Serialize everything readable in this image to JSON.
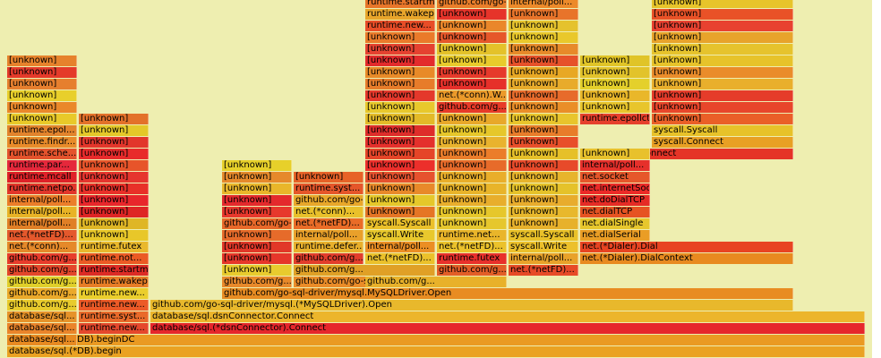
{
  "frames": [
    {
      "label": "database/sql.(*DB).begin",
      "color": "#eaa222"
    },
    {
      "label": "database/sql.(*DB).beginDC",
      "color": "#ea9a22"
    },
    {
      "label": "database/sql.(*dsnConnector).Connect",
      "color": "#e6262b"
    },
    {
      "label": "database/sql.dsnConnector.Connect",
      "color": "#ecb52b"
    },
    {
      "label": "github.com/go-sql-driver/mysql.(*MySQLDriver).Open",
      "color": "#e8b82c"
    },
    {
      "label": "github.com/go-sql-driver/mysql.MySQLDriver.Open",
      "color": "#e88c22"
    },
    {
      "label": "github.com/go-sql-driver/mysql.(*mysqlConn...",
      "color": "#ea8c28"
    },
    {
      "label": "github.com/go-sql-driver/mys...",
      "color": "#e96e22"
    },
    {
      "label": "net.(*Dialer).DialContext",
      "color": "#e88a20"
    },
    {
      "label": "net.(*Dialer).Dial",
      "color": "#e84422"
    },
    {
      "label": "net.dialSerial",
      "color": "#ea9d25"
    },
    {
      "label": "net.dialSingle",
      "color": "#e7c72d"
    },
    {
      "label": "net.dialTCP",
      "color": "#e65322"
    },
    {
      "label": "net.doDialTCP",
      "color": "#e52b25"
    },
    {
      "label": "net.internetSocket",
      "color": "#eb2a27"
    },
    {
      "label": "net.socket",
      "color": "#e6572a"
    },
    {
      "label": "net.(*netFD).dial",
      "color": "#eb7d2a"
    },
    {
      "label": "net.(*netFD).connect",
      "color": "#e53427"
    },
    {
      "label": "syscall.Connect",
      "color": "#e8a024"
    },
    {
      "label": "syscall.Syscall",
      "color": "#e7c229"
    },
    {
      "label": "runtime.epollctl",
      "color": "#e6402c"
    },
    {
      "label": "[unknown]",
      "color": "#ea5f27"
    },
    {
      "label": "database/sql...",
      "color": "#e88a21"
    },
    {
      "label": "database/sql...",
      "color": "#ea842a"
    },
    {
      "label": "database/sql...",
      "color": "#e6932a"
    },
    {
      "label": "github.com/g...",
      "color": "#e8cb2d"
    },
    {
      "label": "github.com/g...",
      "color": "#eba92a"
    },
    {
      "label": "github.com/g...",
      "color": "#e0cf2a"
    },
    {
      "label": "github.com/g...",
      "color": "#e3462a"
    },
    {
      "label": "github.com/g...",
      "color": "#e73c2b"
    },
    {
      "label": "net.(*conn)...",
      "color": "#e5892a"
    },
    {
      "label": "net.(*netFD)...",
      "color": "#e4582c"
    },
    {
      "label": "internal/poll...",
      "color": "#e07f26"
    },
    {
      "label": "internal/poll...",
      "color": "#e8b326"
    },
    {
      "label": "internal/poll...",
      "color": "#eb7d29"
    },
    {
      "label": "runtime.netpo...",
      "color": "#e1362a"
    },
    {
      "label": "runtime.mcall",
      "color": "#df2228"
    },
    {
      "label": "runtime.par...",
      "color": "#e5283b"
    },
    {
      "label": "runtime.sche...",
      "color": "#e4532c"
    },
    {
      "label": "runtime.findr...",
      "color": "#e88b2a"
    },
    {
      "label": "runtime.epol...",
      "color": "#e2832c"
    },
    {
      "label": "[unknown]",
      "color": "#e8c929"
    },
    {
      "label": "[unknown]",
      "color": "#ea882a"
    },
    {
      "label": "[unknown]",
      "color": "#e8cf2b"
    },
    {
      "label": "[unknown]",
      "color": "#e67f2e"
    },
    {
      "label": "[unknown]",
      "color": "#e43a2a"
    },
    {
      "label": "[unknown]",
      "color": "#e6822c"
    },
    {
      "label": "runtime.new...",
      "color": "#e5482c"
    },
    {
      "label": "runtime.syst...",
      "color": "#e96a2a"
    },
    {
      "label": "runtime.new...",
      "color": "#ec5a27"
    },
    {
      "label": "runtime.new...",
      "color": "#ebce2c"
    },
    {
      "label": "runtime.wakep",
      "color": "#e77d26"
    },
    {
      "label": "runtime.startm",
      "color": "#dd2b25"
    },
    {
      "label": "runtime.not...",
      "color": "#eb5a24"
    },
    {
      "label": "runtime.futex",
      "color": "#e9b82c"
    },
    {
      "label": "[unknown]",
      "color": "#e8c729"
    },
    {
      "label": "[unknown]",
      "color": "#dfb625"
    },
    {
      "label": "[unknown]",
      "color": "#de2525"
    },
    {
      "label": "[unknown]",
      "color": "#e8262b"
    },
    {
      "label": "[unknown]",
      "color": "#e83028"
    },
    {
      "label": "[unknown]",
      "color": "#e6352e"
    },
    {
      "label": "[unknown]",
      "color": "#e7542a"
    },
    {
      "label": "[unknown]",
      "color": "#e82b2b"
    },
    {
      "label": "[unknown]",
      "color": "#e2362b"
    },
    {
      "label": "[unknown]",
      "color": "#e4c829"
    },
    {
      "label": "github.com/g...",
      "color": "#e8892a"
    },
    {
      "label": "[unknown]",
      "color": "#e8cb2e"
    },
    {
      "label": "[unknown]",
      "color": "#e6362a"
    },
    {
      "label": "[unknown]",
      "color": "#e13828"
    },
    {
      "label": "[unknown]",
      "color": "#e66b2a"
    },
    {
      "label": "github.com/go-sql-driver/mys...",
      "color": "#e86829"
    },
    {
      "label": "github.com/g...",
      "color": "#e0a026"
    },
    {
      "label": "github.com/g...",
      "color": "#e23d2b"
    },
    {
      "label": "runtime.defer...",
      "color": "#e8b02c"
    },
    {
      "label": "internal/poll...",
      "color": "#e9a02a"
    },
    {
      "label": "net.(*netFD)...",
      "color": "#ea6c27"
    },
    {
      "label": "net.(*conn)...",
      "color": "#e9c02b"
    },
    {
      "label": "github.com/go-sql-driver/mysql.(*mysqlConn...",
      "color": "#e8a72a"
    },
    {
      "label": "runtime.syst...",
      "color": "#e5562a"
    },
    {
      "label": "github.com/g...",
      "color": "#e8b12a"
    },
    {
      "label": "github.com/g...",
      "color": "#e35e27"
    },
    {
      "label": "net.(*netFD)...",
      "color": "#ebc12b"
    },
    {
      "label": "internal/poll...",
      "color": "#eb8e24"
    },
    {
      "label": "syscall.Write",
      "color": "#e8c82d"
    },
    {
      "label": "syscall.Syscall",
      "color": "#ebc02a"
    },
    {
      "label": "[unknown]",
      "color": "#e57525"
    },
    {
      "label": "[unknown]",
      "color": "#e5c82a"
    },
    {
      "label": "[unknown]",
      "color": "#e8892a"
    },
    {
      "label": "[unknown]",
      "color": "#e6522e"
    },
    {
      "label": "[unknown]",
      "color": "#ec2f2b"
    },
    {
      "label": "[unknown]",
      "color": "#e54528"
    },
    {
      "label": "[unknown]",
      "color": "#e4302c"
    },
    {
      "label": "[unknown]",
      "color": "#de2d2a"
    },
    {
      "label": "[unknown]",
      "color": "#e3ba28"
    },
    {
      "label": "[unknown]",
      "color": "#e8c82c"
    },
    {
      "label": "[unknown]",
      "color": "#e4382b"
    },
    {
      "label": "[unknown]",
      "color": "#e77c2a"
    },
    {
      "label": "[unknown]",
      "color": "#e88a28"
    },
    {
      "label": "[unknown]",
      "color": "#e32b2c"
    },
    {
      "label": "[unknown]",
      "color": "#e54230"
    },
    {
      "label": "[unknown]",
      "color": "#ea7a2a"
    },
    {
      "label": "runtime.new...",
      "color": "#e84d27"
    },
    {
      "label": "runtime.wakep",
      "color": "#e8a52b"
    },
    {
      "label": "runtime.startm",
      "color": "#e8762a"
    },
    {
      "label": "runtime.futex",
      "color": "#e8302b"
    },
    {
      "label": "net.(*netFD)...",
      "color": "#ebc22b"
    },
    {
      "label": "runtime.net...",
      "color": "#e9b52a"
    },
    {
      "label": "[unknown]",
      "color": "#e6c72d"
    },
    {
      "label": "[unknown]",
      "color": "#e6c72b"
    },
    {
      "label": "[unknown]",
      "color": "#e8ae2c"
    },
    {
      "label": "[unknown]",
      "color": "#e8b42a"
    },
    {
      "label": "[unknown]",
      "color": "#e9ae2a"
    },
    {
      "label": "[unknown]",
      "color": "#e76b2a"
    },
    {
      "label": "[unknown]",
      "color": "#eb7d2a"
    },
    {
      "label": "[unknown]",
      "color": "#e9b32e"
    },
    {
      "label": "[unknown]",
      "color": "#e6c72a"
    },
    {
      "label": "[unknown]",
      "color": "#e8a82a"
    },
    {
      "label": "github.com/g...",
      "color": "#e73a28"
    },
    {
      "label": "net.(*conn).W...",
      "color": "#eb9a2a"
    },
    {
      "label": "net.(*netFD)...",
      "color": "#e74b27"
    },
    {
      "label": "internal/poll...",
      "color": "#e8a22a"
    },
    {
      "label": "syscall.Write",
      "color": "#ecc02b"
    },
    {
      "label": "syscall.Syscall",
      "color": "#e9c129"
    },
    {
      "label": "[unknown]",
      "color": "#e7b12b"
    },
    {
      "label": "[unknown]",
      "color": "#e8b82c"
    },
    {
      "label": "[unknown]",
      "color": "#e8ac2d"
    },
    {
      "label": "[unknown]",
      "color": "#e5c22a"
    },
    {
      "label": "[unknown]",
      "color": "#e7b42c"
    },
    {
      "label": "[unknown]",
      "color": "#e74a2a"
    },
    {
      "label": "[unknown]",
      "color": "#e6c029"
    },
    {
      "label": "[unknown]",
      "color": "#e84f2a"
    },
    {
      "label": "[unknown]",
      "color": "#e87c2a"
    },
    {
      "label": "[unknown]",
      "color": "#e8c52c"
    },
    {
      "label": "[unknown]",
      "color": "#ea8e28"
    },
    {
      "label": "[unknown]",
      "color": "#e76b2b"
    },
    {
      "label": "[unknown]",
      "color": "#e8ab2b"
    },
    {
      "label": "[unknown]",
      "color": "#e8a824"
    },
    {
      "label": "[unknown]",
      "color": "#e6512a"
    },
    {
      "label": "[unknown]",
      "color": "#e78a2a"
    },
    {
      "label": "[unknown]",
      "color": "#e9c82b"
    },
    {
      "label": "[unknown]",
      "color": "#e5c22d"
    },
    {
      "label": "[unknown]",
      "color": "#e8742a"
    },
    {
      "label": "internal/poll...",
      "color": "#ec8a2a"
    },
    {
      "label": "internal/poll...",
      "color": "#e6302b"
    },
    {
      "label": "[unknown]",
      "color": "#e8c12c"
    },
    {
      "label": "[unknown]",
      "color": "#e8c52c"
    },
    {
      "label": "[unknown]",
      "color": "#e9b72a"
    },
    {
      "label": "[unknown]",
      "color": "#e4d02b"
    },
    {
      "label": "[unknown]",
      "color": "#e2c32b"
    },
    {
      "label": "[unknown]",
      "color": "#e0c428"
    },
    {
      "label": "[unknown]",
      "color": "#e8462a"
    },
    {
      "label": "[unknown]",
      "color": "#e53c2a"
    },
    {
      "label": "[unknown]",
      "color": "#e9af2c"
    },
    {
      "label": "[unknown]",
      "color": "#ea8c2a"
    },
    {
      "label": "[unknown]",
      "color": "#e7c32a"
    },
    {
      "label": "[unknown]",
      "color": "#e6c32d"
    },
    {
      "label": "[unknown]",
      "color": "#e8a32b"
    },
    {
      "label": "[unknown]",
      "color": "#e84230"
    },
    {
      "label": "[unknown]",
      "color": "#e95227"
    },
    {
      "label": "[unknown]",
      "color": "#e7c42a"
    },
    {
      "label": "[unknown]",
      "color": "#e3712a"
    },
    {
      "label": "[unknown]",
      "color": "#e7382c"
    },
    {
      "label": "[unknown]",
      "color": "#e4292c"
    },
    {
      "label": "[unknown]",
      "color": "#e9b62a"
    },
    {
      "label": "[unknown]",
      "color": "#e76227"
    },
    {
      "label": "[unknown]",
      "color": "#e6302a"
    },
    {
      "label": "[unknown]",
      "color": "#e6392b"
    },
    {
      "label": "[unknown]",
      "color": "#e8cb2c"
    },
    {
      "label": "[unknown]",
      "color": "#e4c22a"
    },
    {
      "label": "[unknown]",
      "color": "#e6572a"
    },
    {
      "label": "[unknown]",
      "color": "#ea872a"
    },
    {
      "label": "[unknown]",
      "color": "#e6342a"
    },
    {
      "label": "github.com/go-sql-driver/mysql.(*MySQLDriver).Open",
      "color": "#e97d2a"
    },
    {
      "label": "[unknown]",
      "color": "#e6892b"
    },
    {
      "label": "[unknown]",
      "color": "#e7d02a"
    }
  ]
}
